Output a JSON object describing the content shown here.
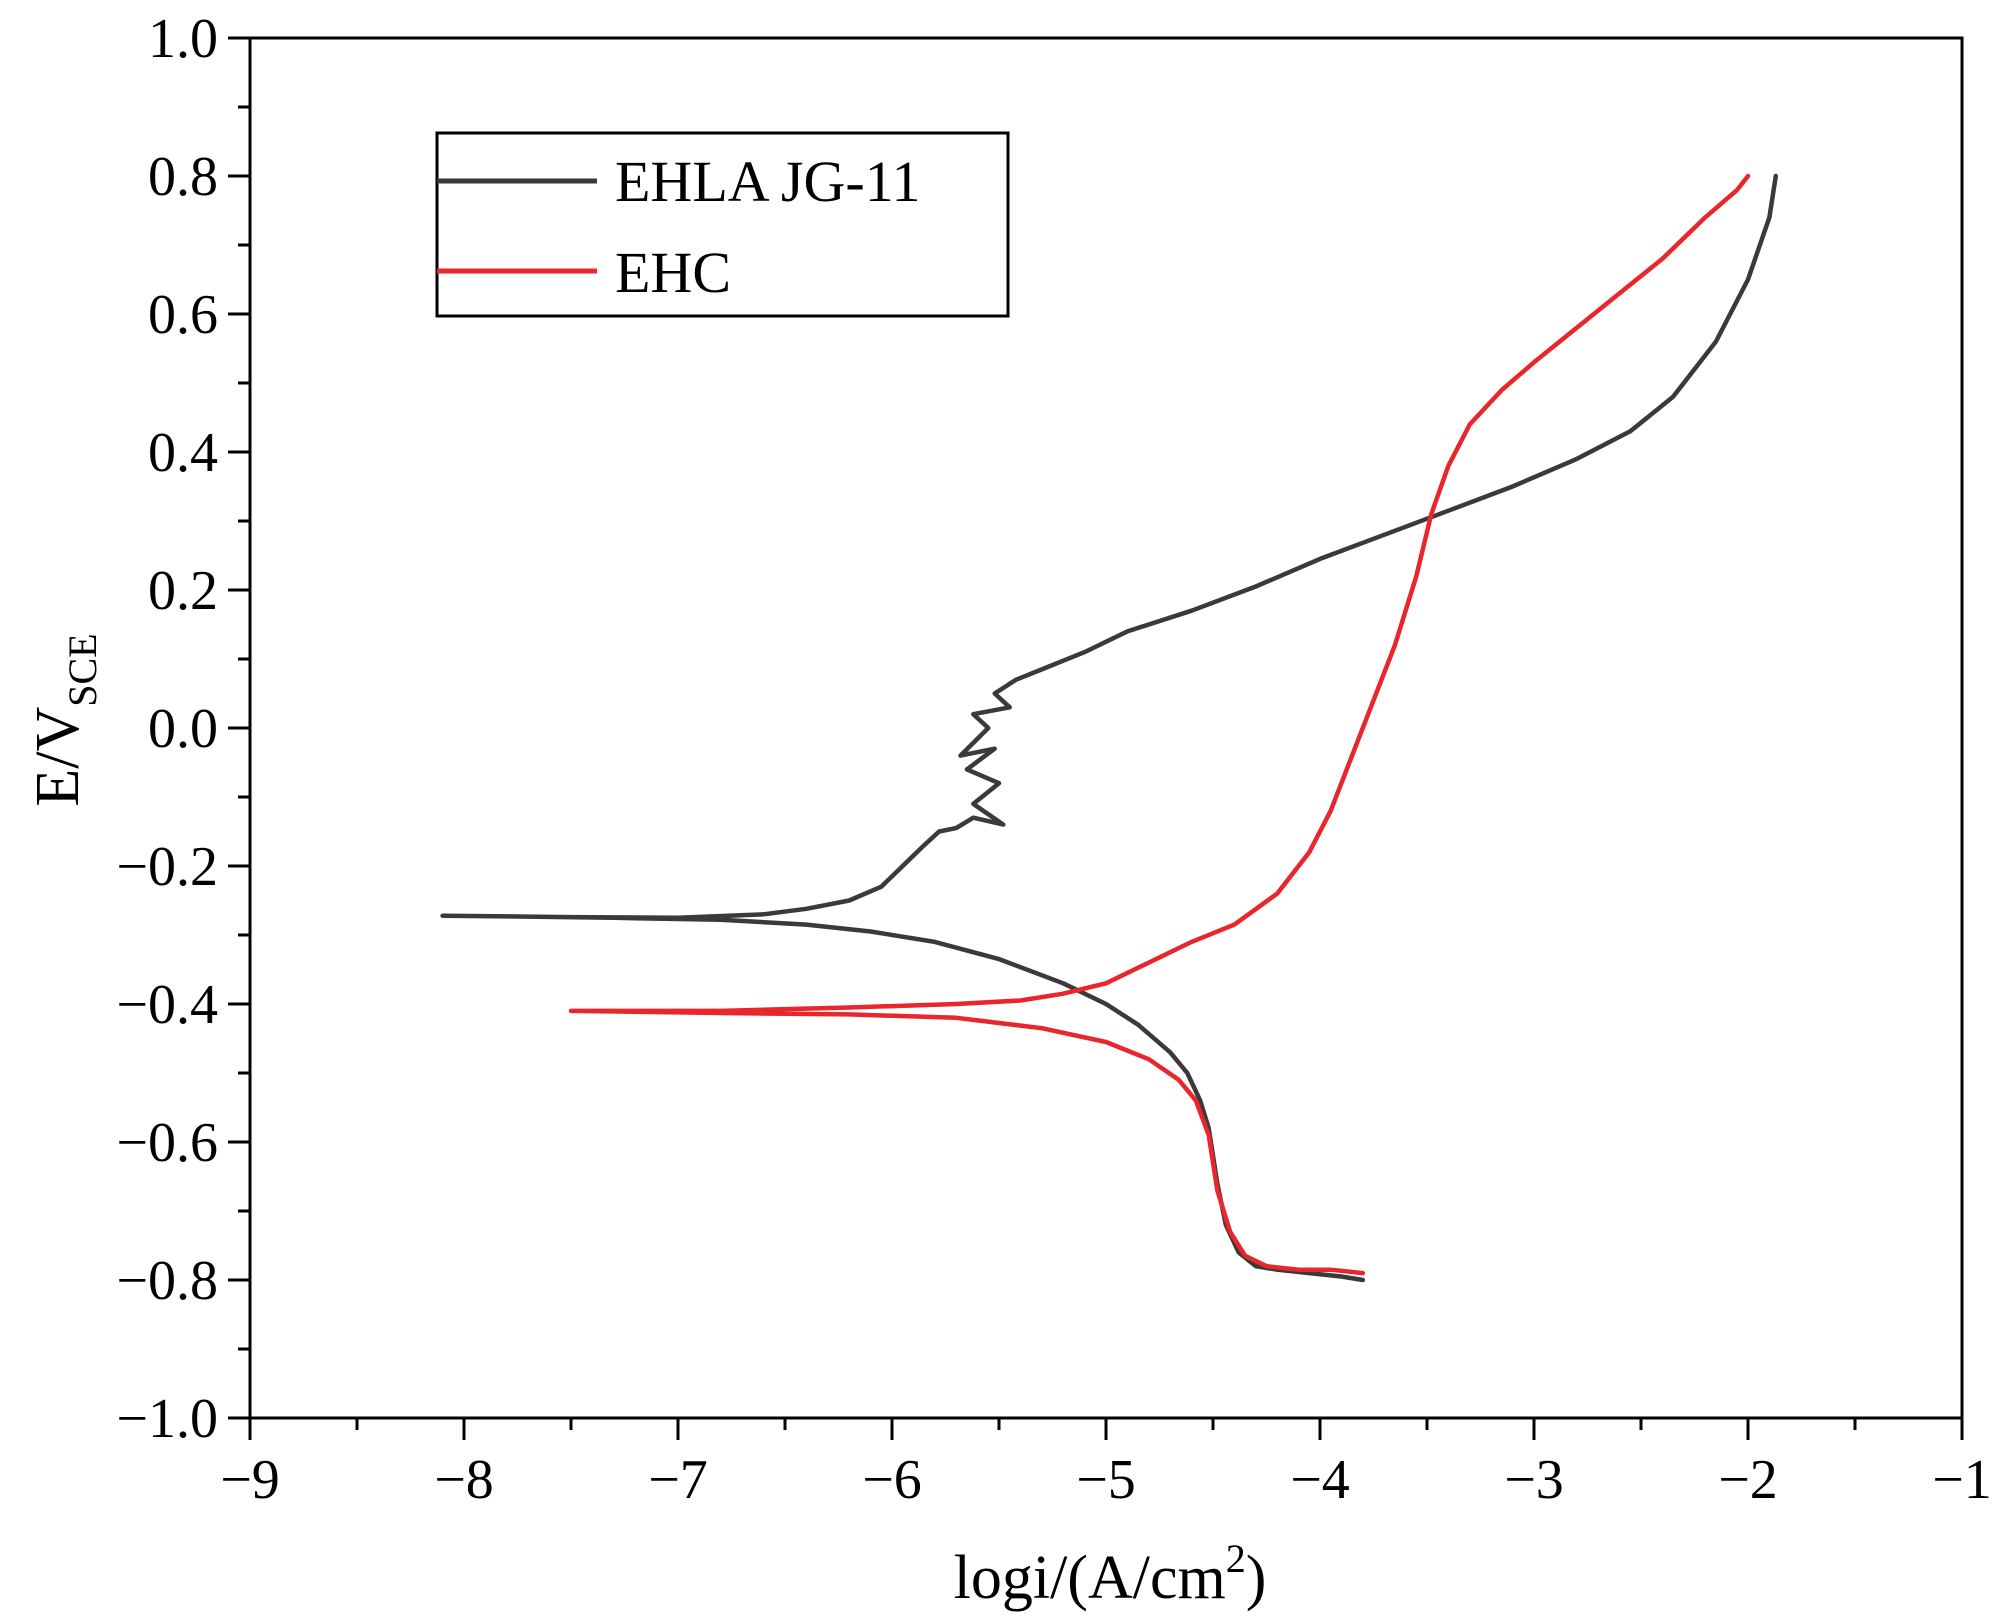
{
  "chart_data": {
    "type": "line",
    "title": "",
    "xlabel": "logi/(A/cm",
    "xlabel_sup": "2",
    "xlabel_end": ")",
    "ylabel": "E/V",
    "ylabel_sub": "SCE",
    "xlim": [
      -9,
      -1
    ],
    "ylim": [
      -1.0,
      1.0
    ],
    "xticks": [
      -9,
      -8,
      -7,
      -6,
      -5,
      -4,
      -3,
      -2,
      -1
    ],
    "xtick_labels": [
      "−9",
      "−8",
      "−7",
      "−6",
      "−5",
      "−4",
      "−3",
      "−2",
      "−1"
    ],
    "yticks": [
      1.0,
      0.8,
      0.6,
      0.4,
      0.2,
      0.0,
      -0.2,
      -0.4,
      -0.6,
      -0.8,
      -1.0
    ],
    "ytick_labels": [
      "1.0",
      "0.8",
      "0.6",
      "0.4",
      "0.2",
      "0.0",
      "−0.2",
      "−0.4",
      "−0.6",
      "−0.8",
      "−1.0"
    ],
    "legend_position": "top-left",
    "series": [
      {
        "name": "EHLA JG-11",
        "color": "#3a3a3a",
        "points": [
          [
            -3.8,
            -0.8
          ],
          [
            -3.9,
            -0.795
          ],
          [
            -4.05,
            -0.79
          ],
          [
            -4.2,
            -0.785
          ],
          [
            -4.3,
            -0.78
          ],
          [
            -4.38,
            -0.76
          ],
          [
            -4.44,
            -0.72
          ],
          [
            -4.48,
            -0.66
          ],
          [
            -4.52,
            -0.58
          ],
          [
            -4.56,
            -0.54
          ],
          [
            -4.62,
            -0.5
          ],
          [
            -4.7,
            -0.47
          ],
          [
            -4.85,
            -0.43
          ],
          [
            -5.0,
            -0.4
          ],
          [
            -5.2,
            -0.37
          ],
          [
            -5.5,
            -0.335
          ],
          [
            -5.8,
            -0.31
          ],
          [
            -6.1,
            -0.295
          ],
          [
            -6.4,
            -0.285
          ],
          [
            -6.8,
            -0.278
          ],
          [
            -7.3,
            -0.275
          ],
          [
            -7.8,
            -0.273
          ],
          [
            -8.1,
            -0.272
          ],
          [
            -7.5,
            -0.274
          ],
          [
            -7.0,
            -0.275
          ],
          [
            -6.6,
            -0.27
          ],
          [
            -6.4,
            -0.262
          ],
          [
            -6.2,
            -0.25
          ],
          [
            -6.05,
            -0.23
          ],
          [
            -5.95,
            -0.2
          ],
          [
            -5.85,
            -0.17
          ],
          [
            -5.78,
            -0.15
          ],
          [
            -5.7,
            -0.145
          ],
          [
            -5.62,
            -0.13
          ],
          [
            -5.48,
            -0.14
          ],
          [
            -5.62,
            -0.11
          ],
          [
            -5.5,
            -0.08
          ],
          [
            -5.65,
            -0.06
          ],
          [
            -5.52,
            -0.03
          ],
          [
            -5.68,
            -0.04
          ],
          [
            -5.55,
            0.0
          ],
          [
            -5.62,
            0.02
          ],
          [
            -5.45,
            0.03
          ],
          [
            -5.52,
            0.05
          ],
          [
            -5.42,
            0.07
          ],
          [
            -5.3,
            0.085
          ],
          [
            -5.1,
            0.11
          ],
          [
            -4.9,
            0.14
          ],
          [
            -4.6,
            0.17
          ],
          [
            -4.3,
            0.205
          ],
          [
            -4.0,
            0.245
          ],
          [
            -3.7,
            0.28
          ],
          [
            -3.4,
            0.315
          ],
          [
            -3.1,
            0.35
          ],
          [
            -2.8,
            0.39
          ],
          [
            -2.55,
            0.43
          ],
          [
            -2.35,
            0.48
          ],
          [
            -2.15,
            0.56
          ],
          [
            -2.0,
            0.65
          ],
          [
            -1.9,
            0.74
          ],
          [
            -1.87,
            0.8
          ]
        ]
      },
      {
        "name": "EHC",
        "color": "#e8262b",
        "points": [
          [
            -3.8,
            -0.79
          ],
          [
            -3.95,
            -0.785
          ],
          [
            -4.1,
            -0.785
          ],
          [
            -4.25,
            -0.78
          ],
          [
            -4.35,
            -0.765
          ],
          [
            -4.42,
            -0.73
          ],
          [
            -4.48,
            -0.67
          ],
          [
            -4.52,
            -0.59
          ],
          [
            -4.58,
            -0.54
          ],
          [
            -4.66,
            -0.51
          ],
          [
            -4.8,
            -0.48
          ],
          [
            -5.0,
            -0.455
          ],
          [
            -5.3,
            -0.435
          ],
          [
            -5.7,
            -0.42
          ],
          [
            -6.2,
            -0.415
          ],
          [
            -6.8,
            -0.413
          ],
          [
            -7.5,
            -0.41
          ],
          [
            -6.8,
            -0.41
          ],
          [
            -6.2,
            -0.405
          ],
          [
            -5.7,
            -0.4
          ],
          [
            -5.4,
            -0.395
          ],
          [
            -5.2,
            -0.385
          ],
          [
            -5.0,
            -0.37
          ],
          [
            -4.8,
            -0.34
          ],
          [
            -4.6,
            -0.31
          ],
          [
            -4.4,
            -0.285
          ],
          [
            -4.2,
            -0.24
          ],
          [
            -4.05,
            -0.18
          ],
          [
            -3.95,
            -0.12
          ],
          [
            -3.85,
            -0.04
          ],
          [
            -3.75,
            0.04
          ],
          [
            -3.65,
            0.12
          ],
          [
            -3.55,
            0.22
          ],
          [
            -3.48,
            0.31
          ],
          [
            -3.4,
            0.38
          ],
          [
            -3.3,
            0.44
          ],
          [
            -3.15,
            0.49
          ],
          [
            -3.0,
            0.53
          ],
          [
            -2.8,
            0.58
          ],
          [
            -2.6,
            0.63
          ],
          [
            -2.4,
            0.68
          ],
          [
            -2.2,
            0.74
          ],
          [
            -2.05,
            0.78
          ],
          [
            -2.0,
            0.8
          ]
        ]
      }
    ]
  }
}
